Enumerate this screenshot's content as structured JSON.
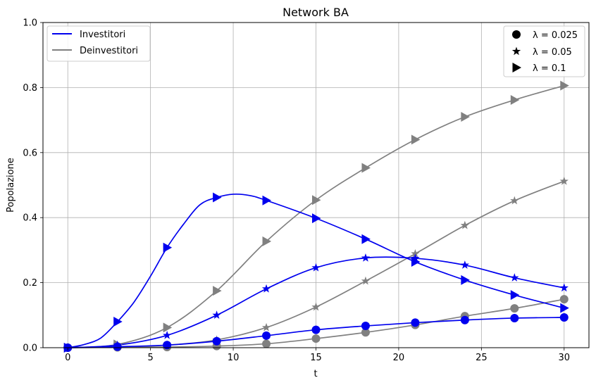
{
  "chart_data": {
    "type": "line",
    "title": "Network BA",
    "xlabel": "t",
    "ylabel": "Popolazione",
    "xlim": [
      -1.5,
      31.5
    ],
    "ylim": [
      0,
      1
    ],
    "x_ticks": [
      "0",
      "5",
      "10",
      "15",
      "20",
      "25",
      "30"
    ],
    "y_ticks": [
      "0.0",
      "0.2",
      "0.4",
      "0.6",
      "0.8",
      "1.0"
    ],
    "grid": true,
    "color_legend": {
      "placement": "top-left",
      "entries": [
        {
          "label": "Investitori",
          "color": "#0000ee"
        },
        {
          "label": "Deinvestitori",
          "color": "#808080"
        }
      ]
    },
    "marker_legend": {
      "placement": "top-right",
      "entries": [
        {
          "label": "λ = 0.025",
          "marker": "circle"
        },
        {
          "label": "λ = 0.05",
          "marker": "star"
        },
        {
          "label": "λ = 0.1",
          "marker": "triangle-right"
        }
      ]
    },
    "series": [
      {
        "group": "Investitori",
        "lambda": "λ = 0.025",
        "marker": "circle",
        "color": "#0000ee",
        "x": [
          0,
          3,
          6,
          9,
          12,
          15,
          18,
          21,
          24,
          27,
          30
        ],
        "y": [
          0.0,
          0.003,
          0.008,
          0.02,
          0.037,
          0.055,
          0.067,
          0.077,
          0.085,
          0.091,
          0.093
        ]
      },
      {
        "group": "Investitori",
        "lambda": "λ = 0.05",
        "marker": "star",
        "color": "#0000ee",
        "x": [
          0,
          3,
          6,
          9,
          12,
          15,
          18,
          21,
          24,
          27,
          30
        ],
        "y": [
          0.0,
          0.008,
          0.038,
          0.1,
          0.181,
          0.246,
          0.276,
          0.275,
          0.254,
          0.215,
          0.184
        ]
      },
      {
        "group": "Investitori",
        "lambda": "λ = 0.1",
        "marker": "triangle-right",
        "color": "#0000ee",
        "x": [
          0,
          1,
          2,
          3,
          4,
          5,
          6,
          7,
          8,
          9,
          10,
          11,
          12,
          15,
          18,
          21,
          24,
          27,
          30
        ],
        "y": [
          0.0,
          0.01,
          0.03,
          0.08,
          0.14,
          0.22,
          0.308,
          0.38,
          0.44,
          0.462,
          0.472,
          0.468,
          0.453,
          0.398,
          0.334,
          0.264,
          0.208,
          0.162,
          0.122
        ]
      },
      {
        "group": "Deinvestitori",
        "lambda": "λ = 0.025",
        "marker": "circle",
        "color": "#808080",
        "x": [
          0,
          3,
          6,
          9,
          12,
          15,
          18,
          21,
          24,
          27,
          30
        ],
        "y": [
          0.0,
          0.001,
          0.002,
          0.005,
          0.012,
          0.028,
          0.047,
          0.07,
          0.097,
          0.121,
          0.149
        ]
      },
      {
        "group": "Deinvestitori",
        "lambda": "λ = 0.05",
        "marker": "star",
        "color": "#808080",
        "x": [
          0,
          3,
          6,
          9,
          12,
          15,
          18,
          21,
          24,
          27,
          30
        ],
        "y": [
          0.0,
          0.002,
          0.008,
          0.024,
          0.062,
          0.125,
          0.205,
          0.289,
          0.376,
          0.452,
          0.512
        ]
      },
      {
        "group": "Deinvestitori",
        "lambda": "λ = 0.1",
        "marker": "triangle-right",
        "color": "#808080",
        "x": [
          0,
          3,
          6,
          9,
          12,
          15,
          18,
          21,
          24,
          27,
          30
        ],
        "y": [
          0.0,
          0.01,
          0.062,
          0.175,
          0.327,
          0.454,
          0.553,
          0.64,
          0.71,
          0.762,
          0.806
        ]
      }
    ]
  }
}
